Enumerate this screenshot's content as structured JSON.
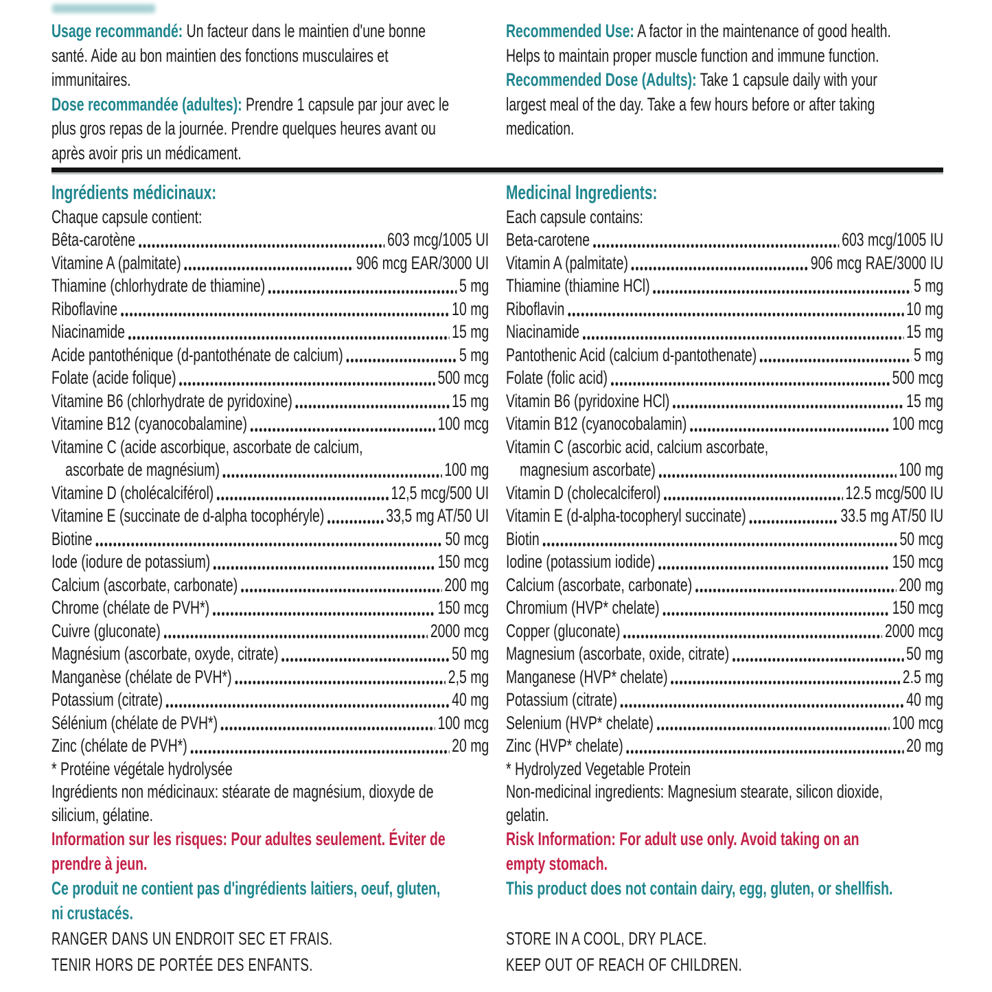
{
  "colors": {
    "teal": "#1f858e",
    "red": "#c32248",
    "ink": "#1b1b1b"
  },
  "top": {
    "fr": {
      "use_label": "Usage recommandé:",
      "use_text": "Un facteur dans le maintien d'une bonne\nsanté. Aide au bon maintien des fonctions musculaires et\nimmunitaires.",
      "dose_label": "Dose recommandée (adultes):",
      "dose_text": "Prendre 1 capsule par jour avec le\nplus gros repas de la journée. Prendre quelques heures avant ou\naprès avoir pris un médicament."
    },
    "en": {
      "use_label": "Recommended Use:",
      "use_text": "A factor in the maintenance of good health.\nHelps to maintain proper muscle function and immune function.",
      "dose_label": "Recommended Dose (Adults):",
      "dose_text": "Take 1 capsule daily with your\nlargest meal of the day. Take a few hours before or after taking\nmedication."
    }
  },
  "ingredients": {
    "fr": {
      "heading": "Ingrédients médicinaux:",
      "subheading": "Chaque capsule contient:",
      "items": [
        {
          "name": "Bêta-carotène",
          "amount": "603 mcg/1005 UI"
        },
        {
          "name": "Vitamine A (palmitate)",
          "amount": "906 mcg EAR/3000 UI"
        },
        {
          "name": "Thiamine (chlorhydrate de thiamine)",
          "amount": "5 mg"
        },
        {
          "name": "Riboflavine",
          "amount": "10 mg"
        },
        {
          "name": "Niacinamide",
          "amount": "15 mg"
        },
        {
          "name": "Acide pantothénique (d-pantothénate de calcium)",
          "amount": "5 mg"
        },
        {
          "name": "Folate (acide folique)",
          "amount": "500 mcg"
        },
        {
          "name": "Vitamine B6 (chlorhydrate de pyridoxine)",
          "amount": "15 mg"
        },
        {
          "name": "Vitamine B12 (cyanocobalamine)",
          "amount": "100 mcg"
        },
        {
          "wrap": "Vitamine C (acide ascorbique, ascorbate de calcium,",
          "name": "ascorbate de magnésium)",
          "amount": "100 mg",
          "indent": true
        },
        {
          "name": "Vitamine D (cholécalciférol)",
          "amount": "12,5 mcg/500 UI"
        },
        {
          "name": "Vitamine E (succinate de d-alpha tocophéryle)",
          "amount": "33,5 mg AT/50 UI"
        },
        {
          "name": "Biotine",
          "amount": "50 mcg"
        },
        {
          "name": "Iode (iodure de potassium)",
          "amount": "150 mcg"
        },
        {
          "name": "Calcium (ascorbate, carbonate)",
          "amount": "200 mg"
        },
        {
          "name": "Chrome (chélate de PVH*)",
          "amount": "150 mcg"
        },
        {
          "name": "Cuivre (gluconate)",
          "amount": "2000 mcg"
        },
        {
          "name": "Magnésium (ascorbate, oxyde, citrate)",
          "amount": "50 mg"
        },
        {
          "name": "Manganèse (chélate de PVH*)",
          "amount": "2,5 mg"
        },
        {
          "name": "Potassium (citrate)",
          "amount": "40 mg"
        },
        {
          "name": "Sélénium (chélate de PVH*)",
          "amount": "100 mcg"
        },
        {
          "name": "Zinc (chélate de PVH*)",
          "amount": "20 mg"
        }
      ],
      "footnote": "* Protéine végétale hydrolysée",
      "nonmedicinal": "Ingrédients non médicinaux: stéarate de magnésium, dioxyde de\nsilicium, gélatine.",
      "risk": "Information sur les risques: Pour adultes seulement. Éviter de\nprendre à jeun.",
      "allergen_free": "Ce produit ne contient pas d'ingrédients laitiers, oeuf, gluten,\nni crustacés.",
      "storage_line1": "RANGER DANS UN ENDROIT SEC ET FRAIS.",
      "storage_line2": "TENIR HORS DE PORTÉE DES ENFANTS."
    },
    "en": {
      "heading": "Medicinal Ingredients:",
      "subheading": "Each capsule contains:",
      "items": [
        {
          "name": "Beta-carotene",
          "amount": "603 mcg/1005 IU"
        },
        {
          "name": "Vitamin A (palmitate)",
          "amount": "906 mcg RAE/3000 IU"
        },
        {
          "name": "Thiamine (thiamine HCl)",
          "amount": "5 mg"
        },
        {
          "name": "Riboflavin",
          "amount": "10 mg"
        },
        {
          "name": "Niacinamide",
          "amount": "15 mg"
        },
        {
          "name": "Pantothenic Acid (calcium d-pantothenate)",
          "amount": "5 mg"
        },
        {
          "name": "Folate (folic acid)",
          "amount": "500 mcg"
        },
        {
          "name": "Vitamin B6 (pyridoxine HCl)",
          "amount": "15 mg"
        },
        {
          "name": "Vitamin B12 (cyanocobalamin)",
          "amount": "100 mcg"
        },
        {
          "wrap": "Vitamin C (ascorbic acid, calcium ascorbate,",
          "name": "magnesium ascorbate)",
          "amount": "100 mg",
          "indent": true
        },
        {
          "name": "Vitamin D (cholecalciferol)",
          "amount": "12.5 mcg/500 IU"
        },
        {
          "name": "Vitamin E (d-alpha-tocopheryl succinate)",
          "amount": "33.5 mg AT/50 IU"
        },
        {
          "name": "Biotin",
          "amount": "50 mcg"
        },
        {
          "name": "Iodine (potassium iodide)",
          "amount": "150 mcg"
        },
        {
          "name": "Calcium (ascorbate, carbonate)",
          "amount": "200 mg"
        },
        {
          "name": "Chromium (HVP* chelate)",
          "amount": "150 mcg"
        },
        {
          "name": "Copper (gluconate)",
          "amount": "2000 mcg"
        },
        {
          "name": "Magnesium (ascorbate, oxide, citrate)",
          "amount": "50 mg"
        },
        {
          "name": "Manganese (HVP* chelate)",
          "amount": "2.5 mg"
        },
        {
          "name": "Potassium (citrate)",
          "amount": "40 mg"
        },
        {
          "name": "Selenium (HVP* chelate)",
          "amount": "100 mcg"
        },
        {
          "name": "Zinc (HVP* chelate)",
          "amount": "20 mg"
        }
      ],
      "footnote": "* Hydrolyzed Vegetable Protein",
      "nonmedicinal": "Non-medicinal ingredients:  Magnesium stearate, silicon dioxide,\ngelatin.",
      "risk": "Risk Information: For adult use only. Avoid taking on an\nempty stomach.",
      "allergen_free": "This product does not contain dairy, egg, gluten, or shellfish.",
      "storage_line1": "STORE IN A COOL, DRY PLACE.",
      "storage_line2": "KEEP OUT OF REACH OF CHILDREN."
    }
  }
}
